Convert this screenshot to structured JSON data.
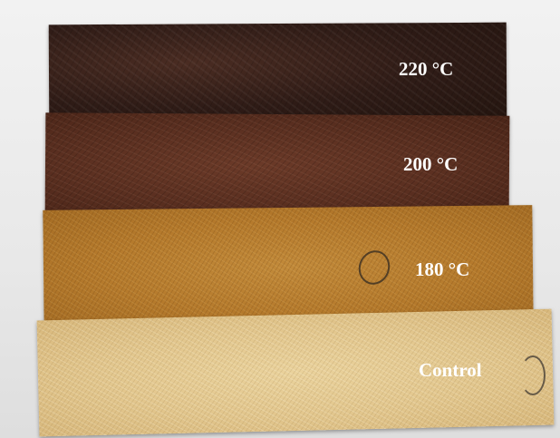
{
  "image": {
    "samples": [
      {
        "id": "s220",
        "label": "220 °C",
        "color": "#2e1b16"
      },
      {
        "id": "s200",
        "label": "200 °C",
        "color": "#5a2f20"
      },
      {
        "id": "s180",
        "label": "180 °C",
        "color": "#b57a2c"
      },
      {
        "id": "control",
        "label": "Control",
        "color": "#e2c68d"
      }
    ],
    "background_color": "#ededed",
    "label_color": "#ffffff"
  }
}
